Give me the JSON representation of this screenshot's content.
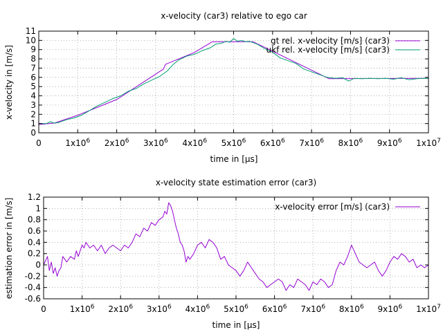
{
  "chart_data": [
    {
      "type": "line",
      "title": "x-velocity (car3) relative to ego car",
      "xlabel": "time in [μs]",
      "ylabel": "x-velocity in [m/s]",
      "xlim": [
        0,
        10000000
      ],
      "ylim": [
        0,
        11
      ],
      "grid": true,
      "legend": "top-right",
      "xticks": [
        {
          "value": 0,
          "base": "0",
          "exp": ""
        },
        {
          "value": 1000000,
          "base": "1x10",
          "exp": "6"
        },
        {
          "value": 2000000,
          "base": "2x10",
          "exp": "6"
        },
        {
          "value": 3000000,
          "base": "3x10",
          "exp": "6"
        },
        {
          "value": 4000000,
          "base": "4x10",
          "exp": "6"
        },
        {
          "value": 5000000,
          "base": "5x10",
          "exp": "6"
        },
        {
          "value": 6000000,
          "base": "6x10",
          "exp": "6"
        },
        {
          "value": 7000000,
          "base": "7x10",
          "exp": "6"
        },
        {
          "value": 8000000,
          "base": "8x10",
          "exp": "6"
        },
        {
          "value": 9000000,
          "base": "9x10",
          "exp": "6"
        },
        {
          "value": 10000000,
          "base": "1x10",
          "exp": "7"
        }
      ],
      "yticks": [
        {
          "value": 0,
          "label": "0"
        },
        {
          "value": 1,
          "label": "1"
        },
        {
          "value": 2,
          "label": "2"
        },
        {
          "value": 3,
          "label": "3"
        },
        {
          "value": 4,
          "label": "4"
        },
        {
          "value": 5,
          "label": "5"
        },
        {
          "value": 6,
          "label": "6"
        },
        {
          "value": 7,
          "label": "7"
        },
        {
          "value": 8,
          "label": "8"
        },
        {
          "value": 9,
          "label": "9"
        },
        {
          "value": 10,
          "label": "10"
        },
        {
          "value": 11,
          "label": "11"
        }
      ],
      "series": [
        {
          "name": "gt rel. x-velocity [m/s] (car3)",
          "color": "#9400d3",
          "x": [
            0,
            400000,
            1000000,
            2000000,
            3200000,
            3250000,
            4000000,
            4450000,
            5500000,
            7450000,
            10000000
          ],
          "y": [
            0.9,
            1.05,
            1.9,
            3.6,
            6.9,
            7.4,
            8.7,
            9.85,
            9.85,
            5.85,
            5.9
          ]
        },
        {
          "name": "ukf rel. x-velocity [m/s] (car3)",
          "color": "#009e73",
          "x": [
            0,
            200000,
            300000,
            400000,
            500000,
            700000,
            900000,
            1100000,
            1300000,
            1500000,
            1700000,
            1900000,
            2100000,
            2300000,
            2500000,
            2700000,
            2900000,
            3100000,
            3300000,
            3450000,
            3600000,
            3800000,
            4000000,
            4200000,
            4400000,
            4550000,
            4700000,
            4800000,
            4900000,
            5000000,
            5100000,
            5200000,
            5300000,
            5400000,
            5600000,
            5800000,
            6000000,
            6200000,
            6400000,
            6600000,
            6800000,
            7000000,
            7200000,
            7400000,
            7600000,
            7800000,
            7950000,
            8100000,
            8300000,
            8500000,
            8700000,
            8900000,
            9100000,
            9300000,
            9500000,
            9700000,
            9900000,
            10000000
          ],
          "y": [
            1.0,
            1.0,
            1.2,
            1.05,
            1.1,
            1.4,
            1.6,
            1.9,
            2.4,
            2.9,
            3.3,
            3.7,
            4.0,
            4.5,
            4.8,
            5.3,
            5.7,
            6.1,
            6.7,
            7.4,
            7.9,
            8.3,
            8.5,
            8.9,
            9.2,
            9.6,
            9.7,
            9.9,
            9.8,
            10.2,
            9.9,
            10.0,
            9.85,
            9.9,
            9.6,
            9.1,
            8.7,
            8.1,
            7.8,
            7.5,
            6.9,
            6.6,
            6.3,
            6.0,
            5.9,
            5.95,
            5.6,
            5.9,
            5.85,
            5.9,
            5.85,
            5.9,
            5.8,
            5.95,
            5.75,
            5.85,
            5.9,
            5.9
          ]
        }
      ]
    },
    {
      "type": "line",
      "title": "x-velocity state estimation error (car3)",
      "xlabel": "time in [μs]",
      "ylabel": "estimation error in [m/s]",
      "xlim": [
        0,
        10000000
      ],
      "ylim": [
        -0.6,
        1.2
      ],
      "grid": true,
      "legend": "top-right",
      "xticks": [
        {
          "value": 0,
          "base": "0",
          "exp": ""
        },
        {
          "value": 1000000,
          "base": "1x10",
          "exp": "6"
        },
        {
          "value": 2000000,
          "base": "2x10",
          "exp": "6"
        },
        {
          "value": 3000000,
          "base": "3x10",
          "exp": "6"
        },
        {
          "value": 4000000,
          "base": "4x10",
          "exp": "6"
        },
        {
          "value": 5000000,
          "base": "5x10",
          "exp": "6"
        },
        {
          "value": 6000000,
          "base": "6x10",
          "exp": "6"
        },
        {
          "value": 7000000,
          "base": "7x10",
          "exp": "6"
        },
        {
          "value": 8000000,
          "base": "8x10",
          "exp": "6"
        },
        {
          "value": 9000000,
          "base": "9x10",
          "exp": "6"
        },
        {
          "value": 10000000,
          "base": "1x10",
          "exp": "7"
        }
      ],
      "yticks": [
        {
          "value": -0.6,
          "label": "-0.6"
        },
        {
          "value": -0.4,
          "label": "-0.4"
        },
        {
          "value": -0.2,
          "label": "-0.2"
        },
        {
          "value": 0,
          "label": "0"
        },
        {
          "value": 0.2,
          "label": "0.2"
        },
        {
          "value": 0.4,
          "label": "0.4"
        },
        {
          "value": 0.6,
          "label": "0.6"
        },
        {
          "value": 0.8,
          "label": "0.8"
        },
        {
          "value": 1,
          "label": "1"
        },
        {
          "value": 1.2,
          "label": "1.2"
        }
      ],
      "series": [
        {
          "name": "x-velocity error [m/s] (car3)",
          "color": "#9400d3",
          "x": [
            0,
            100000,
            150000,
            200000,
            250000,
            300000,
            350000,
            400000,
            450000,
            500000,
            550000,
            600000,
            700000,
            800000,
            850000,
            900000,
            1000000,
            1050000,
            1100000,
            1200000,
            1300000,
            1400000,
            1500000,
            1600000,
            1700000,
            1800000,
            1900000,
            2000000,
            2100000,
            2200000,
            2300000,
            2400000,
            2500000,
            2600000,
            2700000,
            2800000,
            2900000,
            3000000,
            3100000,
            3150000,
            3200000,
            3250000,
            3300000,
            3350000,
            3400000,
            3450000,
            3500000,
            3550000,
            3600000,
            3650000,
            3700000,
            3750000,
            3800000,
            3900000,
            4000000,
            4100000,
            4200000,
            4300000,
            4400000,
            4500000,
            4600000,
            4700000,
            4800000,
            4900000,
            5000000,
            5100000,
            5200000,
            5300000,
            5400000,
            5500000,
            5600000,
            5700000,
            5800000,
            5900000,
            6000000,
            6100000,
            6200000,
            6300000,
            6400000,
            6500000,
            6600000,
            6700000,
            6800000,
            6900000,
            7000000,
            7100000,
            7200000,
            7300000,
            7400000,
            7500000,
            7600000,
            7700000,
            7800000,
            7900000,
            8000000,
            8100000,
            8200000,
            8300000,
            8400000,
            8500000,
            8600000,
            8700000,
            8800000,
            8900000,
            9000000,
            9100000,
            9200000,
            9300000,
            9400000,
            9500000,
            9600000,
            9700000,
            9800000,
            9900000,
            10000000
          ],
          "y": [
            0.0,
            0.15,
            -0.1,
            0.05,
            -0.15,
            -0.05,
            -0.2,
            -0.1,
            -0.05,
            0.15,
            0.1,
            0.05,
            0.15,
            0.1,
            0.25,
            0.15,
            0.35,
            0.3,
            0.4,
            0.3,
            0.35,
            0.25,
            0.35,
            0.2,
            0.3,
            0.35,
            0.3,
            0.25,
            0.35,
            0.3,
            0.4,
            0.55,
            0.5,
            0.65,
            0.6,
            0.75,
            0.7,
            0.8,
            0.85,
            0.95,
            0.9,
            1.1,
            1.05,
            0.95,
            0.8,
            0.65,
            0.55,
            0.4,
            0.35,
            0.25,
            0.05,
            0.15,
            0.1,
            0.2,
            0.35,
            0.4,
            0.3,
            0.45,
            0.4,
            0.3,
            0.1,
            0.15,
            0.0,
            -0.05,
            -0.1,
            -0.2,
            -0.1,
            0.05,
            -0.05,
            -0.15,
            -0.25,
            -0.3,
            -0.4,
            -0.35,
            -0.3,
            -0.25,
            -0.3,
            -0.45,
            -0.35,
            -0.4,
            -0.25,
            -0.3,
            -0.35,
            -0.45,
            -0.3,
            -0.35,
            -0.25,
            -0.3,
            -0.4,
            -0.35,
            -0.1,
            0.05,
            0.0,
            0.15,
            0.35,
            0.2,
            0.05,
            0.0,
            -0.05,
            0.0,
            0.05,
            -0.1,
            -0.2,
            -0.1,
            0.05,
            0.15,
            0.1,
            0.2,
            0.15,
            0.05,
            0.1,
            -0.05,
            0.0,
            -0.05,
            0.0
          ]
        }
      ]
    }
  ]
}
